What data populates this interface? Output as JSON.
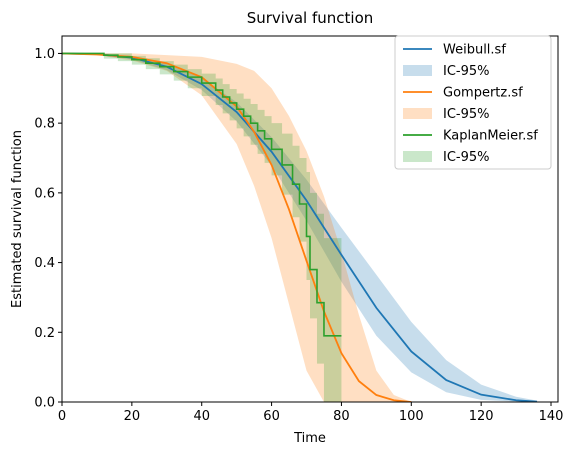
{
  "chart_data": {
    "type": "line",
    "title": "Survival function",
    "xlabel": "Time",
    "ylabel": "Estimated survival function",
    "xlim": [
      0,
      142
    ],
    "ylim": [
      0,
      1.05
    ],
    "xticks": [
      0,
      20,
      40,
      60,
      80,
      100,
      120,
      140
    ],
    "yticks": [
      0.0,
      0.2,
      0.4,
      0.6,
      0.8,
      1.0
    ],
    "grid": false,
    "legend_position": "top-right",
    "legend": [
      {
        "label": "Weibull.sf",
        "kind": "line",
        "color": "#1f77b4"
      },
      {
        "label": "IC-95%",
        "kind": "band",
        "color": "#1f77b4"
      },
      {
        "label": "Gompertz.sf",
        "kind": "line",
        "color": "#ff7f0e"
      },
      {
        "label": "IC-95%",
        "kind": "band",
        "color": "#ff7f0e"
      },
      {
        "label": "KaplanMeier.sf",
        "kind": "line",
        "color": "#2ca02c"
      },
      {
        "label": "IC-95%",
        "kind": "band",
        "color": "#2ca02c"
      }
    ],
    "series": [
      {
        "name": "Weibull.sf",
        "style": "line",
        "color": "#1f77b4",
        "x": [
          0,
          10,
          20,
          30,
          40,
          50,
          60,
          70,
          80,
          90,
          100,
          110,
          120,
          130,
          136
        ],
        "y": [
          1.0,
          0.998,
          0.988,
          0.962,
          0.912,
          0.832,
          0.718,
          0.578,
          0.422,
          0.27,
          0.145,
          0.063,
          0.021,
          0.005,
          0.001
        ]
      },
      {
        "name": "IC-95%",
        "style": "band",
        "color": "#1f77b4",
        "x": [
          0,
          10,
          20,
          30,
          40,
          50,
          60,
          70,
          80,
          90,
          100,
          110,
          120,
          130,
          136
        ],
        "lower": [
          1.0,
          0.996,
          0.983,
          0.952,
          0.895,
          0.805,
          0.678,
          0.52,
          0.345,
          0.19,
          0.085,
          0.028,
          0.006,
          0.001,
          0.0
        ],
        "upper": [
          1.0,
          1.0,
          0.993,
          0.972,
          0.93,
          0.86,
          0.76,
          0.638,
          0.5,
          0.365,
          0.23,
          0.12,
          0.05,
          0.015,
          0.004
        ]
      },
      {
        "name": "Gompertz.sf",
        "style": "line",
        "color": "#ff7f0e",
        "x": [
          0,
          10,
          20,
          30,
          40,
          50,
          55,
          60,
          65,
          70,
          75,
          80,
          85,
          90,
          95,
          100
        ],
        "y": [
          1.0,
          0.997,
          0.99,
          0.972,
          0.932,
          0.848,
          0.775,
          0.68,
          0.552,
          0.405,
          0.26,
          0.14,
          0.06,
          0.02,
          0.005,
          0.0
        ]
      },
      {
        "name": "IC-95%",
        "style": "band",
        "color": "#ff7f0e",
        "x": [
          0,
          10,
          20,
          30,
          40,
          50,
          55,
          60,
          65,
          70,
          75,
          80,
          85,
          90,
          95,
          100
        ],
        "lower": [
          1.0,
          0.995,
          0.98,
          0.95,
          0.88,
          0.74,
          0.62,
          0.47,
          0.28,
          0.09,
          0.0,
          0.0,
          0.0,
          0.0,
          0.0,
          0.0
        ],
        "upper": [
          1.0,
          1.0,
          1.0,
          0.995,
          0.99,
          0.97,
          0.95,
          0.9,
          0.82,
          0.72,
          0.59,
          0.43,
          0.25,
          0.09,
          0.02,
          0.0
        ]
      },
      {
        "name": "KaplanMeier.sf",
        "style": "step",
        "color": "#2ca02c",
        "x": [
          0,
          12,
          16,
          20,
          24,
          28,
          32,
          36,
          40,
          44,
          46,
          48,
          50,
          52,
          54,
          56,
          58,
          60,
          63,
          66,
          68,
          70,
          71,
          73,
          75,
          80
        ],
        "y": [
          1.0,
          0.995,
          0.99,
          0.982,
          0.972,
          0.962,
          0.948,
          0.932,
          0.915,
          0.895,
          0.875,
          0.858,
          0.84,
          0.82,
          0.8,
          0.778,
          0.755,
          0.725,
          0.68,
          0.625,
          0.568,
          0.475,
          0.38,
          0.285,
          0.19,
          0.19
        ]
      },
      {
        "name": "IC-95%",
        "style": "stepband",
        "color": "#2ca02c",
        "x": [
          0,
          12,
          16,
          20,
          24,
          28,
          32,
          36,
          40,
          44,
          46,
          48,
          50,
          52,
          54,
          56,
          58,
          60,
          63,
          66,
          68,
          70,
          71,
          73,
          75,
          80
        ],
        "lower": [
          1.0,
          0.985,
          0.978,
          0.968,
          0.955,
          0.94,
          0.922,
          0.9,
          0.878,
          0.852,
          0.828,
          0.808,
          0.785,
          0.762,
          0.738,
          0.712,
          0.686,
          0.65,
          0.595,
          0.53,
          0.46,
          0.35,
          0.24,
          0.11,
          0.0,
          0.0
        ],
        "upper": [
          1.0,
          1.0,
          1.0,
          0.993,
          0.986,
          0.978,
          0.968,
          0.955,
          0.942,
          0.928,
          0.912,
          0.898,
          0.885,
          0.87,
          0.855,
          0.838,
          0.82,
          0.8,
          0.77,
          0.735,
          0.7,
          0.66,
          0.6,
          0.54,
          0.47,
          0.47
        ]
      }
    ]
  }
}
